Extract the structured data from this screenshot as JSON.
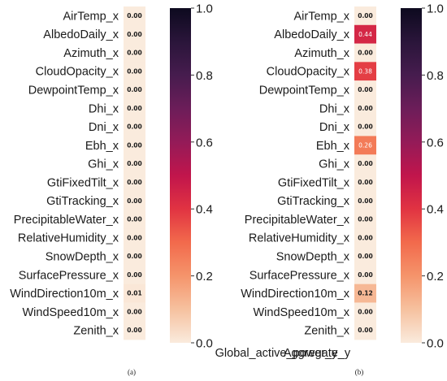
{
  "chart_data": [
    {
      "type": "heatmap",
      "caption": "(a)",
      "xlabel": "Global_active_power_y",
      "rows": [
        "AirTemp_x",
        "AlbedoDaily_x",
        "Azimuth_x",
        "CloudOpacity_x",
        "DewpointTemp_x",
        "Dhi_x",
        "Dni_x",
        "Ebh_x",
        "Ghi_x",
        "GtiFixedTilt_x",
        "GtiTracking_x",
        "PrecipitableWater_x",
        "RelativeHumidity_x",
        "SnowDepth_x",
        "SurfacePressure_x",
        "WindDirection10m_x",
        "WindSpeed10m_x",
        "Zenith_x"
      ],
      "values": [
        0.0,
        0.0,
        0.0,
        0.0,
        0.0,
        0.0,
        0.0,
        0.0,
        0.0,
        0.0,
        0.0,
        0.0,
        0.0,
        0.0,
        0.0,
        0.01,
        0.0,
        0.0
      ],
      "labels": [
        "0.00",
        "0.00",
        "0.00",
        "0.00",
        "0.00",
        "0.00",
        "0.00",
        "0.00",
        "0.00",
        "0.00",
        "0.00",
        "0.00",
        "0.00",
        "0.00",
        "0.00",
        "0.01",
        "0.00",
        "0.00"
      ],
      "colorbar_ticks": [
        "0.0",
        "0.2",
        "0.4",
        "0.6",
        "0.8",
        "1.0"
      ],
      "vrange": [
        0,
        1
      ],
      "colormap": "rocket_r"
    },
    {
      "type": "heatmap",
      "caption": "(b)",
      "xlabel": "Aggregate_y",
      "rows": [
        "AirTemp_x",
        "AlbedoDaily_x",
        "Azimuth_x",
        "CloudOpacity_x",
        "DewpointTemp_x",
        "Dhi_x",
        "Dni_x",
        "Ebh_x",
        "Ghi_x",
        "GtiFixedTilt_x",
        "GtiTracking_x",
        "PrecipitableWater_x",
        "RelativeHumidity_x",
        "SnowDepth_x",
        "SurfacePressure_x",
        "WindDirection10m_x",
        "WindSpeed10m_x",
        "Zenith_x"
      ],
      "values": [
        0.0,
        0.44,
        0.0,
        0.38,
        0.0,
        0.0,
        0.0,
        0.26,
        0.0,
        0.0,
        0.0,
        0.0,
        0.0,
        0.0,
        0.0,
        0.12,
        0.0,
        0.0
      ],
      "labels": [
        "0.00",
        "0.44",
        "0.00",
        "0.38",
        "0.00",
        "0.00",
        "0.00",
        "0.26",
        "0.00",
        "0.00",
        "0.00",
        "0.00",
        "0.00",
        "0.00",
        "0.00",
        "0.12",
        "0.00",
        "0.00"
      ],
      "colorbar_ticks": [
        "0.0",
        "0.2",
        "0.4",
        "0.6",
        "0.8",
        "1.0"
      ],
      "vrange": [
        0,
        1
      ],
      "colormap": "rocket_r"
    }
  ]
}
